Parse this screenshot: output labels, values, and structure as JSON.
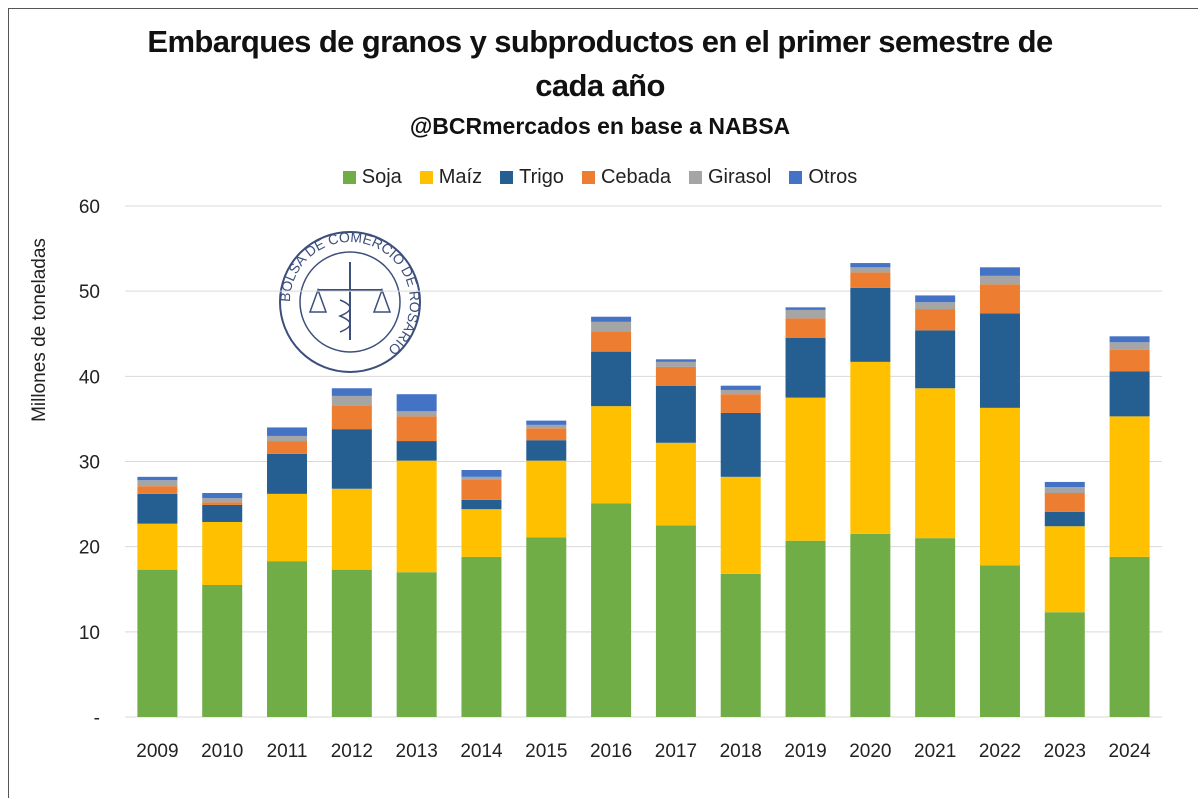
{
  "chart_data": {
    "type": "stacked_bar",
    "title": "Embarques de granos y subproductos en el primer semestre de cada año",
    "subtitle": "@BCRmercados en base a NABSA",
    "y_label": "Millones de toneladas",
    "categories": [
      "2009",
      "2010",
      "2011",
      "2012",
      "2013",
      "2014",
      "2015",
      "2016",
      "2017",
      "2018",
      "2019",
      "2020",
      "2021",
      "2022",
      "2023",
      "2024"
    ],
    "series": [
      {
        "name": "Soja",
        "color": "#70ad47",
        "values": [
          17.3,
          15.5,
          18.3,
          17.3,
          17.0,
          18.8,
          21.1,
          25.1,
          22.5,
          16.8,
          20.7,
          21.5,
          21.0,
          17.8,
          12.3,
          18.8
        ]
      },
      {
        "name": "Maíz",
        "color": "#ffc000",
        "values": [
          5.4,
          7.4,
          7.9,
          9.5,
          13.1,
          5.6,
          9.0,
          11.4,
          9.7,
          11.4,
          16.8,
          20.2,
          17.6,
          18.5,
          10.1,
          16.5
        ]
      },
      {
        "name": "Trigo",
        "color": "#255e91",
        "values": [
          3.5,
          2.0,
          4.7,
          7.0,
          2.3,
          1.1,
          2.4,
          6.4,
          6.7,
          7.5,
          7.0,
          8.7,
          6.8,
          11.1,
          1.7,
          5.3
        ]
      },
      {
        "name": "Cebada",
        "color": "#ed7d31",
        "values": [
          0.9,
          0.3,
          1.5,
          2.8,
          2.9,
          2.4,
          1.4,
          2.4,
          2.2,
          2.2,
          2.3,
          1.8,
          2.5,
          3.4,
          2.2,
          2.5
        ]
      },
      {
        "name": "Girasol",
        "color": "#a5a5a5",
        "values": [
          0.7,
          0.5,
          0.6,
          1.1,
          0.6,
          0.3,
          0.4,
          1.1,
          0.6,
          0.5,
          1.0,
          0.6,
          0.8,
          1.0,
          0.7,
          0.9
        ]
      },
      {
        "name": "Otros",
        "color": "#4472c4",
        "values": [
          0.4,
          0.6,
          1.0,
          0.9,
          2.0,
          0.8,
          0.5,
          0.6,
          0.3,
          0.5,
          0.3,
          0.5,
          0.8,
          1.0,
          0.6,
          0.7
        ]
      }
    ],
    "ylim": [
      0,
      60
    ],
    "yticks": [
      {
        "value": 0,
        "label": "-"
      },
      10,
      20,
      30,
      40,
      50,
      60
    ],
    "grid": true,
    "legend": "top"
  },
  "logo": {
    "text": "BOLSA DE COMERCIO DE ROSARIO"
  }
}
